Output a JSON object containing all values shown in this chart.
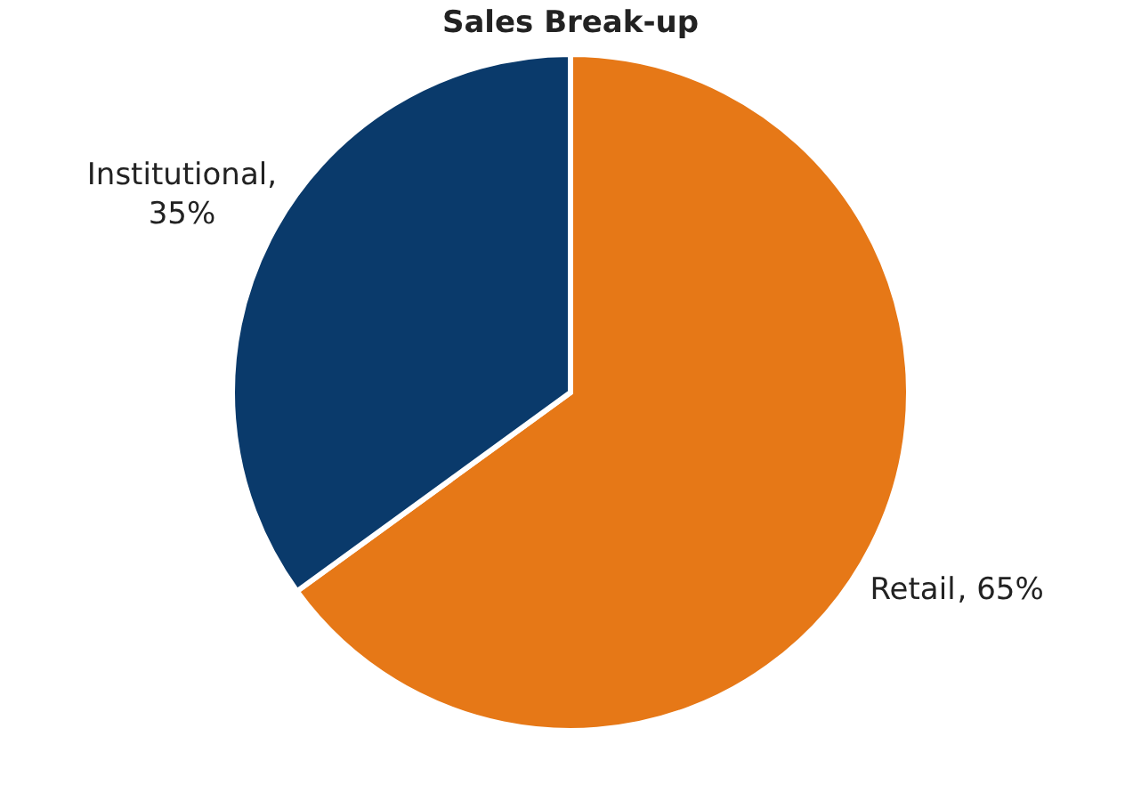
{
  "chart_data": {
    "type": "pie",
    "title": "Sales Break-up",
    "categories": [
      "Retail",
      "Institutional"
    ],
    "values": [
      65,
      35
    ],
    "colors": [
      "#e67817",
      "#0a3a6b"
    ],
    "value_labels": [
      ", 65%",
      ", 35%"
    ],
    "legend": false
  }
}
